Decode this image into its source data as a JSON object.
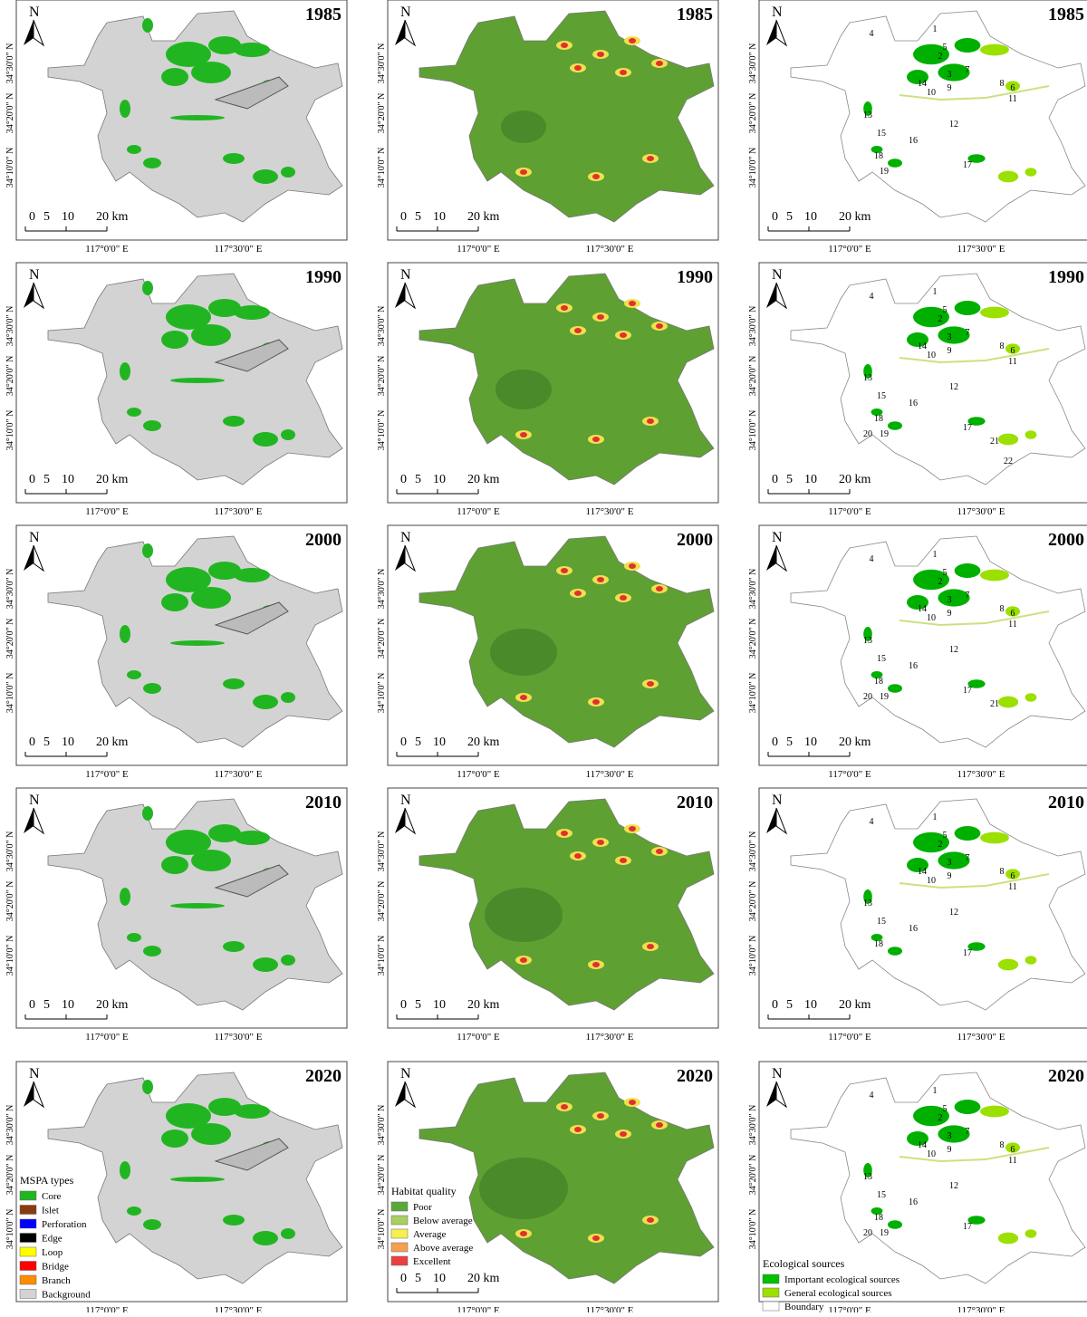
{
  "panel_years": [
    "1985",
    "1990",
    "2000",
    "2010",
    "2020"
  ],
  "north": "N",
  "lat_labels": [
    "34°30'0\" N",
    "34°20'0\" N",
    "34°10'0\" N"
  ],
  "lon_labels": [
    "117°0'0\" E",
    "117°30'0\" E"
  ],
  "scale_labels": [
    "0",
    "5",
    "10",
    "20 km"
  ],
  "source_labels": [
    [
      "1",
      "2",
      "3",
      "4",
      "5",
      "6",
      "7",
      "8",
      "9",
      "10",
      "11",
      "12",
      "13",
      "14",
      "15",
      "16",
      "17",
      "18",
      "19"
    ],
    [
      "1",
      "2",
      "3",
      "4",
      "5",
      "6",
      "7",
      "8",
      "9",
      "10",
      "11",
      "12",
      "13",
      "14",
      "15",
      "16",
      "17",
      "18",
      "19",
      "20",
      "21",
      "22"
    ],
    [
      "1",
      "2",
      "3",
      "4",
      "5",
      "6",
      "7",
      "8",
      "9",
      "10",
      "11",
      "12",
      "13",
      "14",
      "15",
      "16",
      "17",
      "18",
      "19",
      "20",
      "21"
    ],
    [
      "1",
      "2",
      "3",
      "4",
      "5",
      "6",
      "7",
      "8",
      "9",
      "10",
      "11",
      "12",
      "13",
      "14",
      "15",
      "16",
      "17",
      "18"
    ],
    [
      "1",
      "2",
      "3",
      "4",
      "5",
      "6",
      "7",
      "8",
      "9",
      "10",
      "11",
      "12",
      "13",
      "14",
      "15",
      "16",
      "17",
      "18",
      "19",
      "20"
    ]
  ],
  "legends": {
    "mspa": {
      "title": "MSPA types",
      "items": [
        {
          "label": "Core",
          "color": "#22b522"
        },
        {
          "label": "Islet",
          "color": "#8b3a0f"
        },
        {
          "label": "Perforation",
          "color": "#0000ff"
        },
        {
          "label": "Edge",
          "color": "#000000"
        },
        {
          "label": "Loop",
          "color": "#ffff00"
        },
        {
          "label": "Bridge",
          "color": "#ff0000"
        },
        {
          "label": "Branch",
          "color": "#ff8c00"
        },
        {
          "label": "Background",
          "color": "#d3d3d3"
        }
      ]
    },
    "habitat": {
      "title": "Habitat quality",
      "items": [
        {
          "label": "Poor",
          "color": "#5aa83a"
        },
        {
          "label": "Below average",
          "color": "#a8d060"
        },
        {
          "label": "Average",
          "color": "#f5f050"
        },
        {
          "label": "Above average",
          "color": "#f5a050"
        },
        {
          "label": "Excellent",
          "color": "#e84040"
        }
      ]
    },
    "eco": {
      "title": "Ecological sources",
      "items": [
        {
          "label": "Important ecological sources",
          "color": "#00c000"
        },
        {
          "label": "General ecological sources",
          "color": "#9be000"
        },
        {
          "label": "Boundary",
          "color": "#ffffff"
        }
      ]
    }
  }
}
